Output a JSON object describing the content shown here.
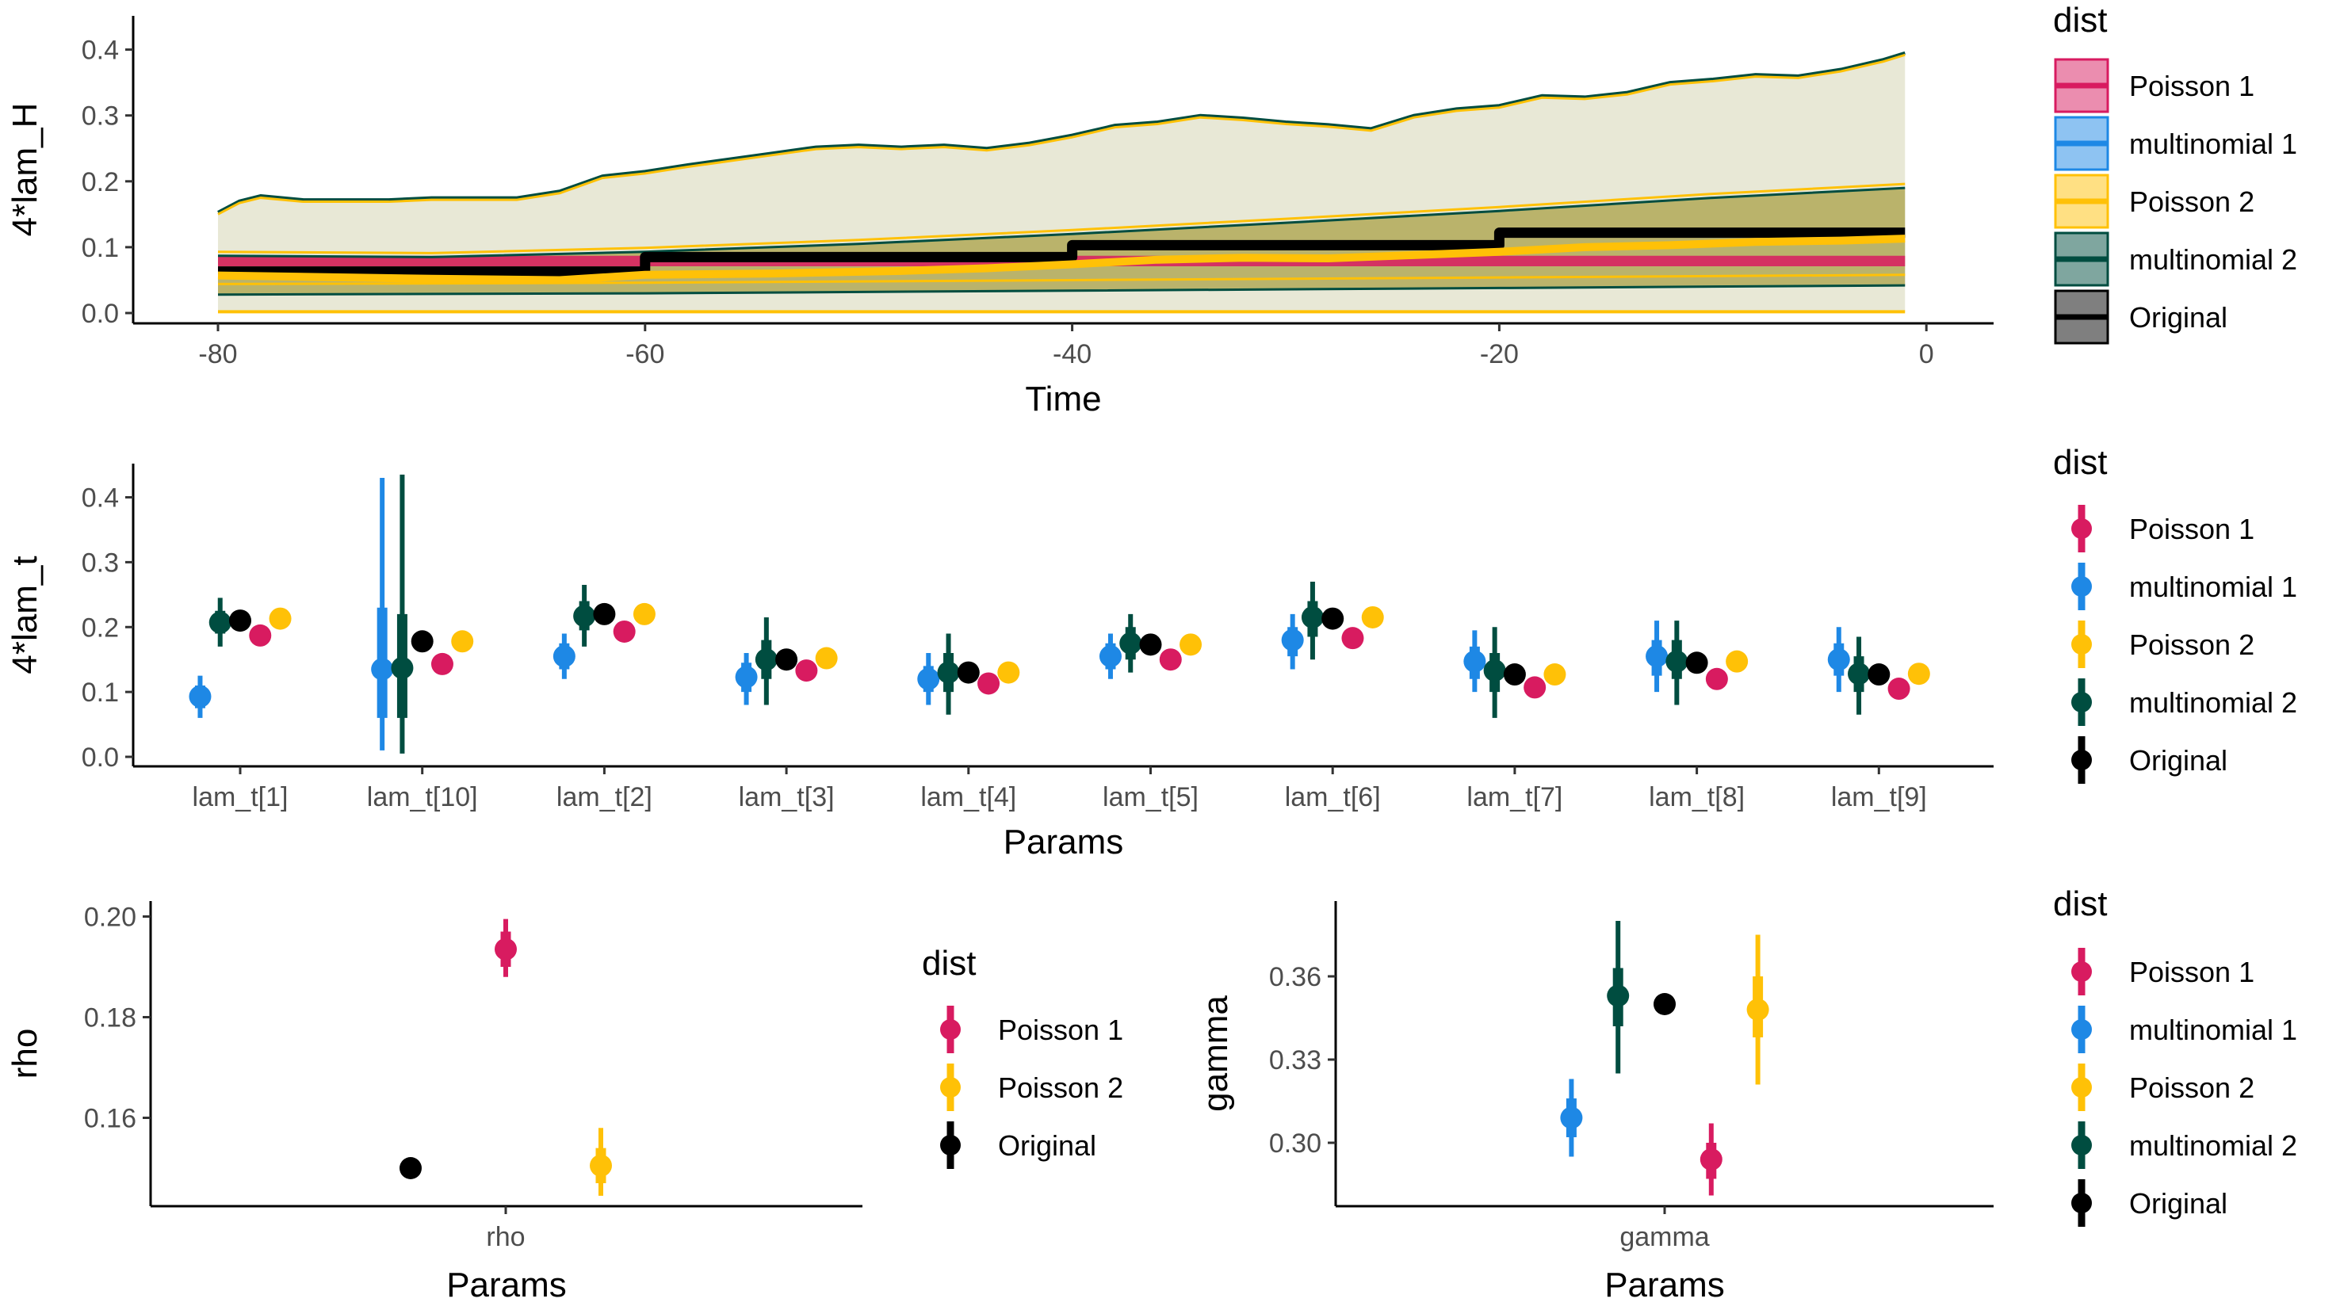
{
  "colors": {
    "poisson1": "#d81b60",
    "multinomial1": "#1e88e5",
    "poisson2": "#ffc107",
    "multinomial2": "#004d40",
    "original": "#000000"
  },
  "chart_data": [
    {
      "id": "top",
      "type": "area",
      "xlabel": "Time",
      "ylabel": "4*lam_H",
      "xlim": [
        -80,
        0
      ],
      "ylim": [
        0,
        0.4
      ],
      "xticks": [
        -80,
        -60,
        -40,
        -20,
        0
      ],
      "xtick_labels": [
        "-80",
        "-60",
        "-40",
        "-20",
        "0"
      ],
      "yticks": [
        0,
        0.1,
        0.2,
        0.3,
        0.4
      ],
      "ytick_labels": [
        "0.0",
        "0.1",
        "0.2",
        "0.3",
        "0.4"
      ],
      "legend": {
        "title": "dist",
        "entries": [
          "Poisson 1",
          "multinomial 1",
          "Poisson 2",
          "multinomial 2",
          "Original"
        ]
      },
      "bands": {
        "outer_upper_x": [
          -80,
          -79,
          -78,
          -76,
          -72,
          -70,
          -66,
          -64,
          -62,
          -60,
          -58,
          -54,
          -52,
          -50,
          -48,
          -46,
          -44,
          -42,
          -40,
          -38,
          -36,
          -34,
          -32,
          -30,
          -28,
          -26,
          -24,
          -22,
          -20,
          -18,
          -16,
          -14,
          -12,
          -10,
          -8,
          -6,
          -4,
          -2,
          -1
        ],
        "outer_upper_y": [
          0.153,
          0.17,
          0.178,
          0.172,
          0.172,
          0.175,
          0.175,
          0.185,
          0.208,
          0.215,
          0.225,
          0.243,
          0.252,
          0.255,
          0.252,
          0.255,
          0.25,
          0.258,
          0.27,
          0.285,
          0.29,
          0.3,
          0.296,
          0.29,
          0.286,
          0.28,
          0.3,
          0.31,
          0.315,
          0.33,
          0.328,
          0.335,
          0.35,
          0.355,
          0.362,
          0.36,
          0.37,
          0.385,
          0.395
        ],
        "inner_upper_x": [
          -80,
          -70,
          -60,
          -50,
          -40,
          -30,
          -20,
          -10,
          -1
        ],
        "inner_upper_y": [
          0.087,
          0.085,
          0.093,
          0.105,
          0.12,
          0.137,
          0.155,
          0.175,
          0.19
        ],
        "inner_lower_x": [
          -80,
          -60,
          -40,
          -20,
          -1
        ],
        "inner_lower_y": [
          0.028,
          0.03,
          0.034,
          0.038,
          0.042
        ],
        "outer_lower_x": [
          -80,
          -1
        ],
        "outer_lower_y": [
          0.002,
          0.002
        ]
      },
      "poisson1_band": {
        "x": [
          -80,
          -1
        ],
        "lower": [
          0.071,
          0.071
        ],
        "upper": [
          0.087,
          0.087
        ]
      },
      "series": [
        {
          "name": "Original",
          "x": [
            -80,
            -60,
            -60,
            -40,
            -40,
            -20,
            -20,
            -1
          ],
          "y": [
            0.063,
            0.063,
            0.085,
            0.085,
            0.103,
            0.103,
            0.122,
            0.122
          ]
        },
        {
          "name": "Poisson 2",
          "x": [
            -80,
            -70,
            -64,
            -60,
            -54,
            -48,
            -44,
            -40,
            -36,
            -32,
            -28,
            -24,
            -20,
            -16,
            -12,
            -8,
            -4,
            -1
          ],
          "y": [
            0.057,
            0.052,
            0.05,
            0.058,
            0.06,
            0.064,
            0.068,
            0.074,
            0.081,
            0.084,
            0.083,
            0.088,
            0.093,
            0.1,
            0.103,
            0.108,
            0.11,
            0.113
          ]
        }
      ]
    },
    {
      "id": "middle",
      "type": "scatter",
      "xlabel": "Params",
      "ylabel": "4*lam_t",
      "ylim": [
        0,
        0.45
      ],
      "yticks": [
        0,
        0.1,
        0.2,
        0.3,
        0.4
      ],
      "ytick_labels": [
        "0.0",
        "0.1",
        "0.2",
        "0.3",
        "0.4"
      ],
      "categories": [
        "lam_t[1]",
        "lam_t[10]",
        "lam_t[2]",
        "lam_t[3]",
        "lam_t[4]",
        "lam_t[5]",
        "lam_t[6]",
        "lam_t[7]",
        "lam_t[8]",
        "lam_t[9]"
      ],
      "legend": {
        "title": "dist",
        "entries": [
          "Poisson 1",
          "multinomial 1",
          "Poisson 2",
          "multinomial 2",
          "Original"
        ]
      },
      "series": [
        {
          "name": "multinomial 1",
          "offset": -0.22,
          "values": [
            0.093,
            0.135,
            0.155,
            0.123,
            0.12,
            0.155,
            0.18,
            0.147,
            0.155,
            0.15
          ],
          "inner": [
            [
              0.075,
              0.11
            ],
            [
              0.06,
              0.23
            ],
            [
              0.135,
              0.175
            ],
            [
              0.1,
              0.145
            ],
            [
              0.1,
              0.14
            ],
            [
              0.135,
              0.175
            ],
            [
              0.155,
              0.2
            ],
            [
              0.12,
              0.17
            ],
            [
              0.125,
              0.18
            ],
            [
              0.125,
              0.175
            ]
          ],
          "outer": [
            [
              0.06,
              0.125
            ],
            [
              0.01,
              0.43
            ],
            [
              0.12,
              0.19
            ],
            [
              0.08,
              0.16
            ],
            [
              0.08,
              0.16
            ],
            [
              0.12,
              0.19
            ],
            [
              0.135,
              0.22
            ],
            [
              0.1,
              0.195
            ],
            [
              0.1,
              0.21
            ],
            [
              0.1,
              0.2
            ]
          ]
        },
        {
          "name": "multinomial 2",
          "offset": -0.11,
          "values": [
            0.207,
            0.137,
            0.217,
            0.15,
            0.13,
            0.175,
            0.215,
            0.133,
            0.147,
            0.128
          ],
          "inner": [
            [
              0.19,
              0.225
            ],
            [
              0.06,
              0.22
            ],
            [
              0.195,
              0.24
            ],
            [
              0.12,
              0.18
            ],
            [
              0.1,
              0.16
            ],
            [
              0.15,
              0.2
            ],
            [
              0.185,
              0.24
            ],
            [
              0.1,
              0.16
            ],
            [
              0.12,
              0.18
            ],
            [
              0.1,
              0.155
            ]
          ],
          "outer": [
            [
              0.17,
              0.245
            ],
            [
              0.005,
              0.435
            ],
            [
              0.17,
              0.265
            ],
            [
              0.08,
              0.215
            ],
            [
              0.065,
              0.19
            ],
            [
              0.13,
              0.22
            ],
            [
              0.15,
              0.27
            ],
            [
              0.06,
              0.2
            ],
            [
              0.08,
              0.21
            ],
            [
              0.065,
              0.185
            ]
          ]
        },
        {
          "name": "Original",
          "offset": 0.0,
          "values": [
            0.21,
            0.178,
            0.22,
            0.15,
            0.13,
            0.173,
            0.213,
            0.127,
            0.145,
            0.127
          ]
        },
        {
          "name": "Poisson 1",
          "offset": 0.11,
          "values": [
            0.187,
            0.143,
            0.193,
            0.133,
            0.113,
            0.15,
            0.183,
            0.107,
            0.12,
            0.105
          ]
        },
        {
          "name": "Poisson 2",
          "offset": 0.22,
          "values": [
            0.213,
            0.178,
            0.22,
            0.152,
            0.13,
            0.173,
            0.215,
            0.127,
            0.147,
            0.128
          ]
        }
      ]
    },
    {
      "id": "bottom-left",
      "type": "scatter",
      "xlabel": "Params",
      "ylabel": "rho",
      "ylim": [
        0.132,
        0.202
      ],
      "yticks": [
        0.16,
        0.18,
        0.2
      ],
      "ytick_labels": [
        "0.16",
        "0.18",
        "0.20"
      ],
      "categories": [
        "rho"
      ],
      "legend": {
        "title": "dist",
        "entries": [
          "Poisson 1",
          "Poisson 2",
          "Original"
        ]
      },
      "series": [
        {
          "name": "Original",
          "offset": -0.25,
          "values": [
            0.15
          ]
        },
        {
          "name": "Poisson 1",
          "offset": 0.0,
          "values": [
            0.1935
          ],
          "inner": [
            [
              0.19,
              0.197
            ]
          ],
          "outer": [
            [
              0.188,
              0.1995
            ]
          ]
        },
        {
          "name": "Poisson 2",
          "offset": 0.25,
          "values": [
            0.1505
          ],
          "inner": [
            [
              0.147,
              0.154
            ]
          ],
          "outer": [
            [
              0.1445,
              0.158
            ]
          ]
        }
      ]
    },
    {
      "id": "bottom-right",
      "type": "scatter",
      "xlabel": "Params",
      "ylabel": "gamma",
      "ylim": [
        0.277,
        0.382
      ],
      "yticks": [
        0.3,
        0.33,
        0.36
      ],
      "ytick_labels": [
        "0.30",
        "0.33",
        "0.36"
      ],
      "categories": [
        "gamma"
      ],
      "legend": {
        "title": "dist",
        "entries": [
          "Poisson 1",
          "multinomial 1",
          "Poisson 2",
          "multinomial 2",
          "Original"
        ]
      },
      "series": [
        {
          "name": "multinomial 1",
          "offset": -0.28,
          "values": [
            0.309
          ],
          "inner": [
            [
              0.302,
              0.316
            ]
          ],
          "outer": [
            [
              0.295,
              0.323
            ]
          ]
        },
        {
          "name": "multinomial 2",
          "offset": -0.14,
          "values": [
            0.353
          ],
          "inner": [
            [
              0.342,
              0.363
            ]
          ],
          "outer": [
            [
              0.325,
              0.38
            ]
          ]
        },
        {
          "name": "Original",
          "offset": 0.0,
          "values": [
            0.35
          ]
        },
        {
          "name": "Poisson 1",
          "offset": 0.14,
          "values": [
            0.294
          ],
          "inner": [
            [
              0.287,
              0.3
            ]
          ],
          "outer": [
            [
              0.281,
              0.307
            ]
          ]
        },
        {
          "name": "Poisson 2",
          "offset": 0.28,
          "values": [
            0.348
          ],
          "inner": [
            [
              0.338,
              0.36
            ]
          ],
          "outer": [
            [
              0.321,
              0.375
            ]
          ]
        }
      ]
    }
  ]
}
